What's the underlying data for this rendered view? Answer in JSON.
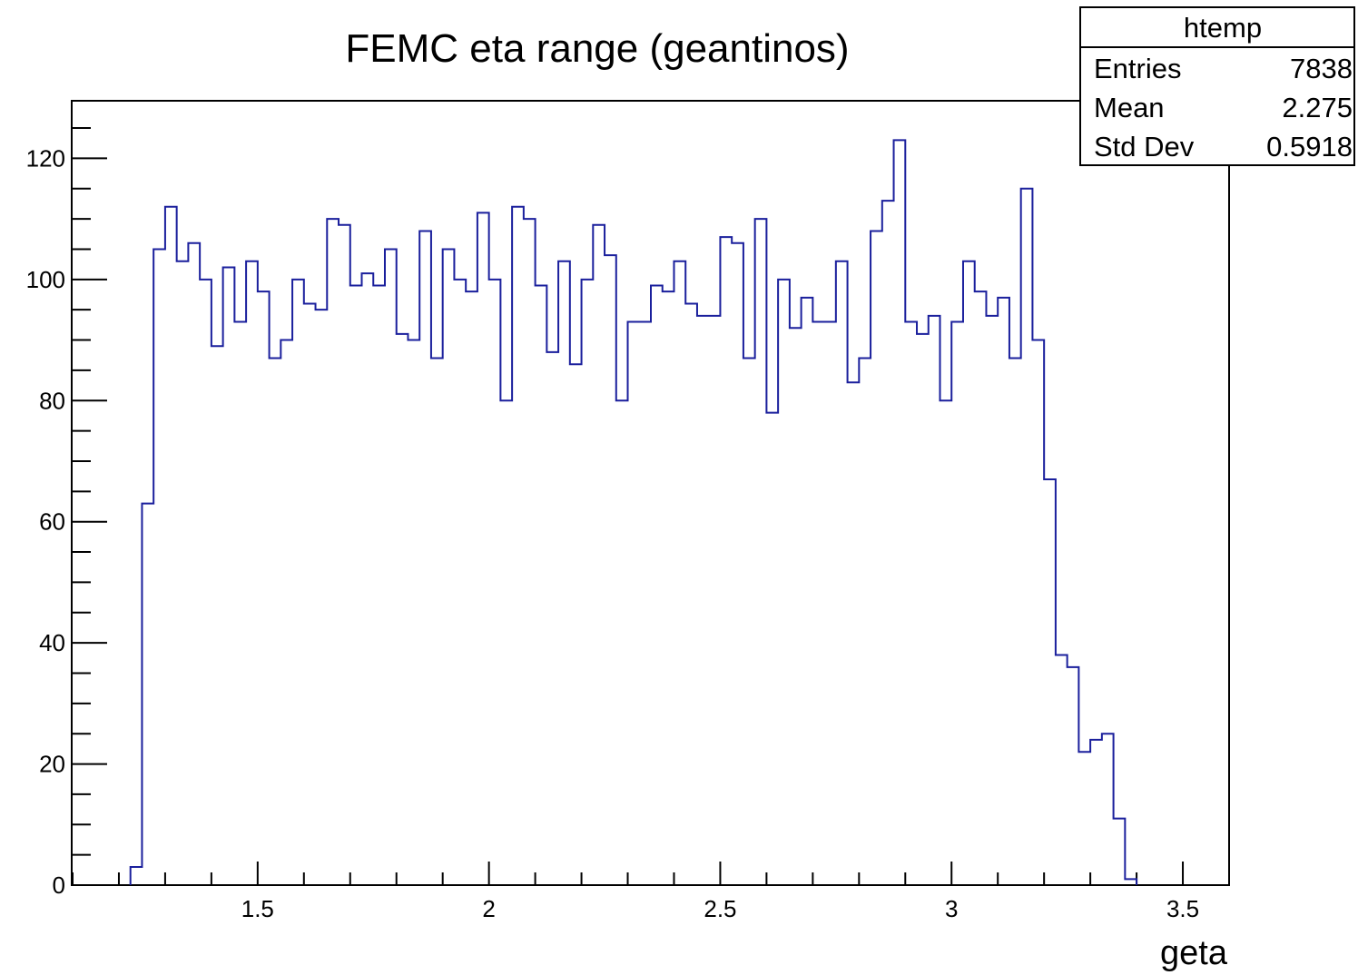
{
  "chart_data": {
    "type": "histogram",
    "title": "FEMC eta range (geantinos)",
    "xlabel": "geta",
    "ylabel": "",
    "xlim": [
      1.1,
      3.6
    ],
    "ylim": [
      0,
      129.5
    ],
    "x_ticks": [
      1.5,
      2,
      2.5,
      3,
      3.5
    ],
    "x_tick_labels": [
      "1.5",
      "2",
      "2.5",
      "3",
      "3.5"
    ],
    "y_ticks": [
      0,
      20,
      40,
      60,
      80,
      100,
      120
    ],
    "y_tick_labels": [
      "0",
      "20",
      "40",
      "60",
      "80",
      "100",
      "120"
    ],
    "line_color": "#1a1f9c",
    "stats_box": {
      "name": "htemp",
      "rows": [
        {
          "label": "Entries",
          "value": "7838"
        },
        {
          "label": "Mean",
          "value": "2.275"
        },
        {
          "label": "Std Dev",
          "value": "0.5918"
        }
      ]
    },
    "bin_start": 1.225,
    "bin_width": 0.025,
    "values": [
      3,
      63,
      105,
      112,
      103,
      106,
      100,
      89,
      102,
      93,
      103,
      98,
      87,
      90,
      100,
      96,
      95,
      110,
      109,
      99,
      101,
      99,
      105,
      91,
      90,
      108,
      87,
      105,
      100,
      98,
      111,
      100,
      80,
      112,
      110,
      99,
      88,
      103,
      86,
      100,
      109,
      104,
      80,
      93,
      93,
      99,
      98,
      103,
      96,
      94,
      94,
      107,
      106,
      87,
      110,
      78,
      100,
      92,
      97,
      93,
      93,
      103,
      83,
      87,
      108,
      113,
      123,
      93,
      91,
      94,
      80,
      93,
      103,
      98,
      94,
      97,
      87,
      115,
      90,
      67,
      38,
      36,
      22,
      24,
      25,
      11,
      1
    ]
  }
}
